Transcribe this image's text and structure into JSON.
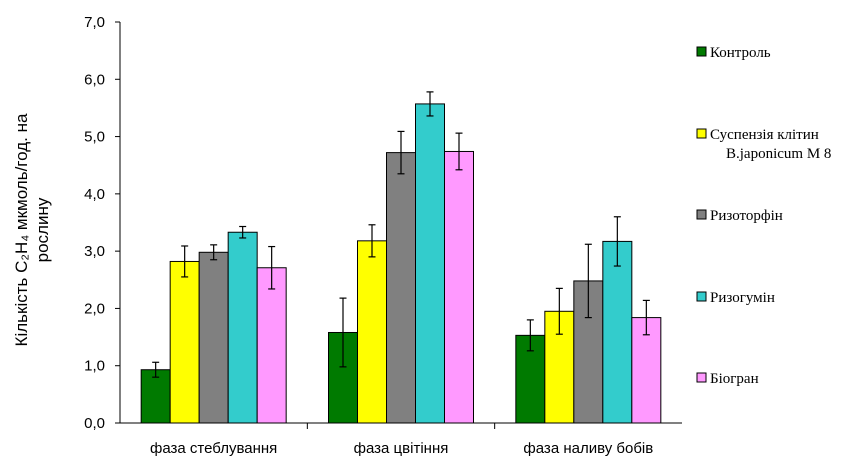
{
  "chart_data": {
    "type": "bar",
    "categories": [
      "фаза стеблування",
      "фаза цвітіння",
      "фаза наливу бобів"
    ],
    "ylabel_lines": [
      "Кількість C₂H₄ мкмоль/год. на",
      "рослину"
    ],
    "ylim": [
      0,
      7
    ],
    "yticks": [
      "0,0",
      "1,0",
      "2,0",
      "3,0",
      "4,0",
      "5,0",
      "6,0",
      "7,0"
    ],
    "grid": false,
    "legend_position": "right",
    "error_bars": true,
    "series": [
      {
        "name": "Контроль",
        "color": "#007A00",
        "values": [
          0.93,
          1.58,
          1.53
        ],
        "errors": [
          0.13,
          0.6,
          0.27
        ]
      },
      {
        "name_lines": [
          "Суспензія клітин",
          "B.japonicum М 8"
        ],
        "color": "#FFFF00",
        "values": [
          2.82,
          3.18,
          1.95
        ],
        "errors": [
          0.27,
          0.28,
          0.4
        ]
      },
      {
        "name": "Ризоторфін",
        "color": "#808080",
        "values": [
          2.98,
          4.72,
          2.48
        ],
        "errors": [
          0.13,
          0.37,
          0.64
        ]
      },
      {
        "name": "Ризогумін",
        "color": "#33CCCC",
        "values": [
          3.33,
          5.57,
          3.17
        ],
        "errors": [
          0.1,
          0.21,
          0.43
        ]
      },
      {
        "name": "Біогран",
        "color": "#FF99FF",
        "values": [
          2.71,
          4.74,
          1.84
        ],
        "errors": [
          0.37,
          0.32,
          0.3
        ]
      }
    ]
  }
}
